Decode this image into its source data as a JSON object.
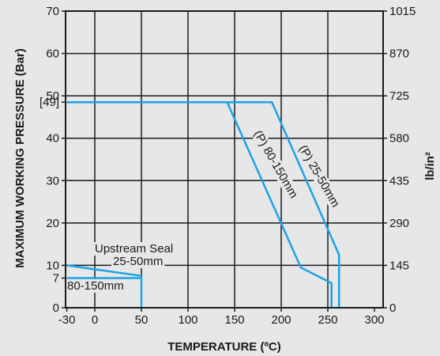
{
  "chart_data": {
    "type": "line",
    "xlabel": "TEMPERATURE (ºC)",
    "ylabel": "MAXIMUM WORKING PRESSURE (Bar)",
    "ylabel_right": "lb/in²",
    "xlim": [
      -30,
      300
    ],
    "ylim": [
      0,
      70
    ],
    "x_ticks": [
      "-30",
      "0",
      "50",
      "100",
      "150",
      "200",
      "250",
      "300"
    ],
    "x_tick_values": [
      -30,
      0,
      50,
      100,
      150,
      200,
      250,
      300
    ],
    "y_ticks": [
      "0",
      "7",
      "10",
      "20",
      "30",
      "40",
      "[49]",
      "50",
      "60",
      "70"
    ],
    "y_tick_values": [
      0,
      7,
      10,
      20,
      30,
      40,
      48.5,
      50,
      60,
      70
    ],
    "y_right_ticks": [
      "0",
      "145",
      "290",
      "435",
      "580",
      "725",
      "870",
      "1015"
    ],
    "y_right_tick_values": [
      0,
      10,
      20,
      30,
      40,
      50,
      60,
      70
    ],
    "grid": true,
    "line_color": "#1aa3e8",
    "series": [
      {
        "name": "(P) 25-50mm",
        "x": [
          -30,
          190,
          262,
          262
        ],
        "y": [
          48.5,
          48.5,
          12.5,
          0
        ]
      },
      {
        "name": "(P) 80-150mm",
        "x": [
          -30,
          142,
          221,
          254,
          254
        ],
        "y": [
          48.5,
          48.5,
          9.5,
          5.8,
          0
        ]
      },
      {
        "name": "25-50mm",
        "x": [
          -30,
          50,
          50
        ],
        "y": [
          10,
          7.5,
          0
        ]
      },
      {
        "name": "80-150mm",
        "x": [
          -30,
          50
        ],
        "y": [
          7,
          7
        ]
      }
    ],
    "annotations": {
      "upstream_seal": "Upstream Seal",
      "upstream_25_50": "25-50mm",
      "upstream_80_150": "80-150mm"
    }
  }
}
